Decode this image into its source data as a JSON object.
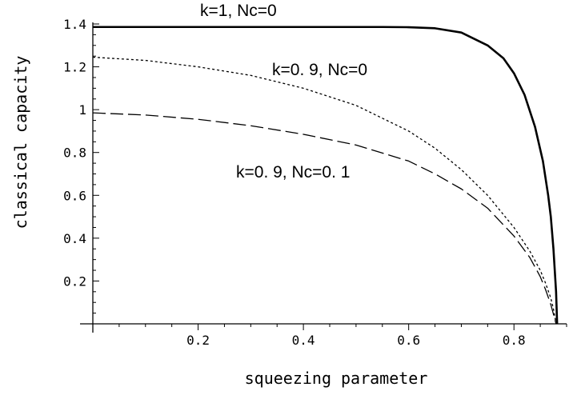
{
  "chart_data": {
    "type": "line",
    "title": "",
    "xlabel": "squeezing parameter",
    "ylabel": "classical capacity",
    "xlim": [
      0,
      0.9
    ],
    "ylim": [
      0,
      1.4
    ],
    "grid": false,
    "legend": "none",
    "x_ticks": [
      0.2,
      0.4,
      0.6,
      0.8
    ],
    "x_tick_labels": [
      "0.2",
      "0.4",
      "0.6",
      "0.8"
    ],
    "y_ticks": [
      0.2,
      0.4,
      0.6,
      0.8,
      1.0,
      1.2,
      1.4
    ],
    "y_tick_labels": [
      "0.2",
      "0.4",
      "0.6",
      "0.8",
      "1",
      "1.2",
      "1.4"
    ],
    "series": [
      {
        "name": "k=1, Nc=0",
        "line_style": "solid",
        "color": "#000000",
        "x": [
          0,
          0.1,
          0.2,
          0.3,
          0.4,
          0.5,
          0.55,
          0.6,
          0.65,
          0.7,
          0.75,
          0.78,
          0.8,
          0.82,
          0.84,
          0.855,
          0.865,
          0.87,
          0.875,
          0.88,
          0.882
        ],
        "y": [
          1.386,
          1.386,
          1.386,
          1.386,
          1.386,
          1.386,
          1.386,
          1.385,
          1.38,
          1.36,
          1.3,
          1.24,
          1.17,
          1.07,
          0.92,
          0.76,
          0.6,
          0.5,
          0.35,
          0.15,
          0.0
        ]
      },
      {
        "name": "k=0. 9, Nc=0",
        "line_style": "dotted",
        "color": "#000000",
        "x": [
          0,
          0.1,
          0.2,
          0.3,
          0.4,
          0.5,
          0.6,
          0.65,
          0.7,
          0.75,
          0.8,
          0.83,
          0.85,
          0.86,
          0.87,
          0.875,
          0.88
        ],
        "y": [
          1.245,
          1.23,
          1.2,
          1.16,
          1.1,
          1.02,
          0.9,
          0.82,
          0.72,
          0.6,
          0.45,
          0.34,
          0.25,
          0.19,
          0.12,
          0.07,
          0.0
        ]
      },
      {
        "name": "k=0. 9, Nc=0. 1",
        "line_style": "dashed",
        "color": "#000000",
        "x": [
          0,
          0.1,
          0.2,
          0.3,
          0.4,
          0.5,
          0.6,
          0.65,
          0.7,
          0.75,
          0.8,
          0.83,
          0.85,
          0.86,
          0.87,
          0.88
        ],
        "y": [
          0.985,
          0.975,
          0.955,
          0.925,
          0.885,
          0.835,
          0.76,
          0.7,
          0.63,
          0.54,
          0.41,
          0.31,
          0.22,
          0.16,
          0.09,
          0.0
        ]
      }
    ],
    "annotations": [
      {
        "text": "k=1, Nc=0",
        "series": 0
      },
      {
        "text": "k=0. 9, Nc=0",
        "series": 1
      },
      {
        "text": "k=0. 9, Nc=0. 1",
        "series": 2
      }
    ]
  }
}
